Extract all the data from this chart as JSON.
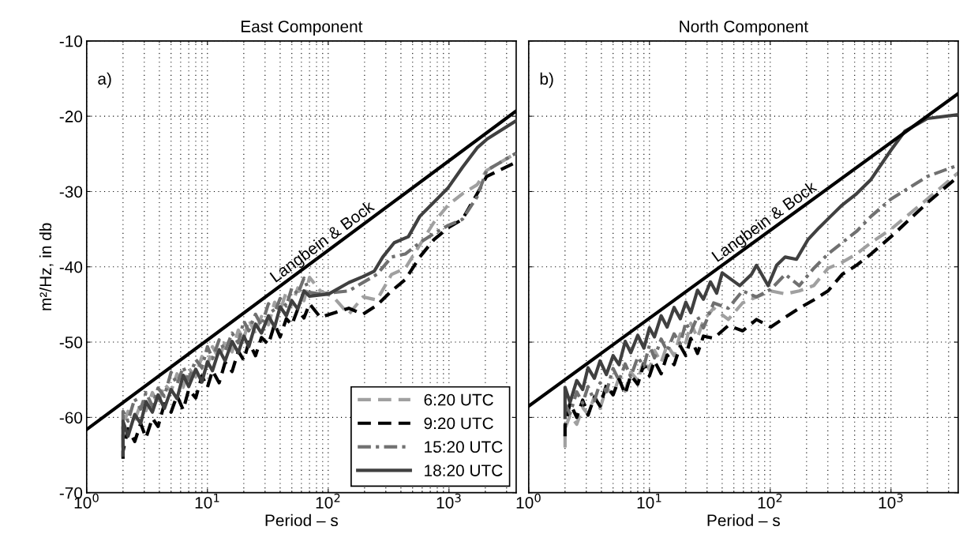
{
  "chart_data": [
    {
      "type": "line",
      "title": "East Component",
      "xlabel": "Period – s",
      "ylabel": "m²/Hz, in db",
      "log": "x",
      "grid": true,
      "legend": "bottom right",
      "marker": "none",
      "xlim": [
        1,
        3600
      ],
      "xticks": [
        {
          "value": 1,
          "label": "10$^{0}$"
        },
        {
          "value": 10,
          "label": "10$^{1}$"
        },
        {
          "value": 100,
          "label": "10$^{2}$"
        },
        {
          "value": 1000,
          "label": "10$^{3}$"
        }
      ],
      "ylim": [
        -70,
        -10
      ],
      "yticks": [
        -70,
        -60,
        -50,
        -40,
        -30,
        -20,
        -10
      ],
      "annotations": [
        "a)"
      ],
      "series": [
        {
          "name": "6:20 UTC",
          "color": "#a0a0a0",
          "line_style": "dashed",
          "x": [
            2,
            2,
            2.2,
            2.5,
            2.8,
            3.1,
            3.5,
            3.9,
            4.4,
            5,
            5.6,
            6.3,
            7,
            8,
            9,
            10,
            11,
            12.5,
            14,
            16,
            18,
            20,
            22,
            25,
            28,
            32,
            36,
            40,
            45,
            50,
            56,
            63,
            70,
            86,
            110,
            148,
            194,
            253,
            335,
            434,
            573,
            750,
            984,
            1291,
            1710,
            2050,
            3600
          ],
          "values": [
            -63,
            -61.0,
            -59.2,
            -60.4,
            -58.2,
            -59.1,
            -56.7,
            -58.3,
            -55.6,
            -56.5,
            -54.2,
            -56.0,
            -53.5,
            -54.6,
            -51.9,
            -53.2,
            -50.6,
            -52.2,
            -49.9,
            -51.3,
            -48.4,
            -49.6,
            -47.0,
            -48.9,
            -46.6,
            -47.7,
            -44.7,
            -45.9,
            -43.3,
            -45.1,
            -42.8,
            -44.5,
            -41.4,
            -43.2,
            -44.0,
            -46.3,
            -44.0,
            -44.4,
            -41.0,
            -40.2,
            -37.1,
            -34.1,
            -31.8,
            -30.3,
            -29.1,
            -27.2,
            -24.9
          ]
        },
        {
          "name": "9:20 UTC",
          "color": "#000000",
          "line_style": "dashed",
          "x": [
            2,
            2,
            2.2,
            2.5,
            2.8,
            3.1,
            3.5,
            3.9,
            4.4,
            5,
            5.6,
            6.3,
            7,
            8,
            9,
            10,
            11,
            12.5,
            14,
            16,
            18,
            20,
            22,
            25,
            28,
            32,
            36,
            40,
            45,
            50,
            56,
            63,
            70,
            86,
            148,
            194,
            253,
            335,
            434,
            573,
            750,
            984,
            1291,
            1710,
            2050,
            3600
          ],
          "values": [
            -65.5,
            -64.5,
            -61.5,
            -63.2,
            -60.8,
            -62.7,
            -60.1,
            -61.2,
            -58.2,
            -59.3,
            -57.1,
            -59.0,
            -56.3,
            -57.4,
            -54.5,
            -56.0,
            -53.8,
            -55.4,
            -52.7,
            -53.9,
            -51.2,
            -52.4,
            -50.0,
            -51.8,
            -49.4,
            -50.3,
            -47.6,
            -49.3,
            -46.9,
            -47.7,
            -45.6,
            -46.8,
            -44.9,
            -46.7,
            -45.5,
            -46.3,
            -45.1,
            -43.2,
            -41.7,
            -38.7,
            -36.4,
            -34.8,
            -33.7,
            -30.3,
            -28.0,
            -26.1
          ]
        },
        {
          "name": "15:20 UTC",
          "color": "#707070",
          "line_style": "dashdot",
          "x": [
            2,
            2,
            2.2,
            2.5,
            2.8,
            3.1,
            3.5,
            3.9,
            4.4,
            5,
            5.6,
            6.3,
            7,
            8,
            9,
            10,
            11,
            12.5,
            14,
            16,
            18,
            20,
            22,
            25,
            28,
            32,
            36,
            40,
            45,
            50,
            56,
            63,
            70,
            86,
            148,
            253,
            335,
            434,
            573,
            750,
            984,
            1291,
            1710,
            2050,
            3600
          ],
          "values": [
            -64,
            -59.2,
            -60.5,
            -57.5,
            -58.9,
            -56.7,
            -58.5,
            -56.1,
            -57.2,
            -54.0,
            -55.6,
            -53.3,
            -55.0,
            -52.3,
            -53.4,
            -50.6,
            -52.2,
            -49.7,
            -51.2,
            -48.8,
            -50.1,
            -47.2,
            -48.5,
            -46.3,
            -47.8,
            -44.9,
            -46.1,
            -44.2,
            -45.2,
            -42.8,
            -43.6,
            -41.5,
            -43.4,
            -43.6,
            -43.2,
            -41.0,
            -38.7,
            -38.3,
            -36.8,
            -35.6,
            -34.5,
            -33.7,
            -30.7,
            -27.2,
            -24.9
          ]
        },
        {
          "name": "18:20 UTC",
          "color": "#404040",
          "line_style": "solid",
          "x": [
            2,
            2,
            2.2,
            2.5,
            2.8,
            3.1,
            3.5,
            3.9,
            4.4,
            5,
            5.6,
            6.3,
            7,
            8,
            9,
            10,
            11,
            12.5,
            14,
            16,
            18,
            20,
            22,
            25,
            28,
            32,
            36,
            40,
            45,
            50,
            56,
            63,
            70,
            101,
            148,
            194,
            240,
            283,
            352,
            461,
            573,
            711,
            984,
            1291,
            1710,
            2080,
            3600
          ],
          "values": [
            -65,
            -60.5,
            -62.5,
            -59.6,
            -60.8,
            -57.9,
            -59.3,
            -57.0,
            -58.8,
            -56.3,
            -57.5,
            -54.4,
            -55.9,
            -53.6,
            -55.3,
            -52.6,
            -53.8,
            -51.0,
            -52.5,
            -49.9,
            -51.4,
            -49.2,
            -50.6,
            -47.6,
            -48.8,
            -46.5,
            -48.0,
            -45.3,
            -46.5,
            -44.5,
            -45.6,
            -43.2,
            -43.9,
            -43.6,
            -42.1,
            -41.3,
            -40.6,
            -38.7,
            -36.8,
            -36.0,
            -33.3,
            -31.8,
            -29.5,
            -26.8,
            -24.2,
            -23.0,
            -20.6
          ]
        },
        {
          "name": "Langbein & Bock",
          "color": "#000000",
          "line_style": "solid",
          "x": [
            1,
            3600
          ],
          "values": [
            -61.6,
            -19.3
          ]
        }
      ]
    },
    {
      "type": "line",
      "title": "North Component",
      "xlabel": "Period – s",
      "log": "x",
      "grid": true,
      "marker": "none",
      "tick_labels": "x",
      "xlim": [
        1,
        3600
      ],
      "xticks": [
        {
          "value": 1,
          "label": "10$^{0}$"
        },
        {
          "value": 10,
          "label": "10$^{1}$"
        },
        {
          "value": 100,
          "label": "10$^{2}$"
        },
        {
          "value": 1000,
          "label": "10$^{3}$"
        }
      ],
      "ylim": [
        -70,
        -10
      ],
      "yticks": [
        -70,
        -60,
        -50,
        -40,
        -30,
        -20,
        -10
      ],
      "annotations": [
        "b)"
      ],
      "series": [
        {
          "color": "#a0a0a0",
          "line_style": "dashed",
          "x": [
            2,
            2,
            2.2,
            2.5,
            2.8,
            3.1,
            3.5,
            3.9,
            4.4,
            5,
            5.6,
            6.3,
            7,
            8,
            9,
            10,
            11,
            12.5,
            14,
            16,
            18,
            20,
            22,
            25,
            28,
            34,
            45,
            59,
            77,
            101,
            133,
            174,
            229,
            301,
            394,
            518,
            683,
            1000,
            2000,
            3600
          ],
          "values": [
            -64,
            -61.5,
            -59.7,
            -60.9,
            -58.7,
            -59.6,
            -57.2,
            -58.8,
            -56.1,
            -57.0,
            -54.7,
            -56.5,
            -54.0,
            -55.1,
            -52.4,
            -53.7,
            -51.1,
            -52.7,
            -50.4,
            -51.8,
            -48.9,
            -50.1,
            -47.5,
            -49.4,
            -47.1,
            -45.5,
            -47.0,
            -44.8,
            -44.0,
            -43.2,
            -43.6,
            -43.2,
            -42.5,
            -40.2,
            -39.4,
            -38.3,
            -36.8,
            -35.0,
            -31.0,
            -27.5
          ]
        },
        {
          "color": "#000000",
          "line_style": "dashed",
          "x": [
            2,
            2,
            2.2,
            2.5,
            2.8,
            3.1,
            3.5,
            3.9,
            4.4,
            5,
            5.6,
            6.3,
            7,
            8,
            9,
            10,
            11,
            12.5,
            14,
            16,
            18,
            20,
            22,
            25,
            28,
            34,
            45,
            59,
            77,
            101,
            133,
            174,
            229,
            301,
            394,
            518,
            683,
            1000,
            2000,
            3600
          ],
          "values": [
            -62.5,
            -61.0,
            -58.1,
            -60.0,
            -57.7,
            -59.7,
            -57.3,
            -58.5,
            -55.7,
            -57.0,
            -54.9,
            -56.9,
            -54.4,
            -55.6,
            -52.9,
            -54.5,
            -52.5,
            -54.2,
            -51.7,
            -53.0,
            -50.5,
            -51.8,
            -49.5,
            -51.5,
            -49.2,
            -49.5,
            -47.8,
            -48.5,
            -47.0,
            -48.0,
            -46.7,
            -45.5,
            -44.4,
            -43.2,
            -41.0,
            -39.8,
            -38.3,
            -36.0,
            -31.5,
            -28.0
          ]
        },
        {
          "color": "#707070",
          "line_style": "dashdot",
          "x": [
            2,
            2.2,
            2.5,
            2.8,
            3.1,
            3.5,
            3.9,
            4.4,
            5,
            5.6,
            6.3,
            7,
            8,
            9,
            10,
            11,
            12.5,
            14,
            16,
            18,
            20,
            22,
            25,
            28,
            34,
            45,
            59,
            77,
            101,
            133,
            174,
            229,
            301,
            394,
            518,
            683,
            1000,
            2000,
            3600
          ],
          "values": [
            -58.2,
            -59.5,
            -56.6,
            -58.1,
            -55.9,
            -57.8,
            -55.4,
            -56.6,
            -53.5,
            -55.1,
            -52.9,
            -54.6,
            -52.0,
            -53.2,
            -50.4,
            -52.1,
            -49.6,
            -51.2,
            -48.9,
            -50.2,
            -47.4,
            -48.7,
            -46.6,
            -48.1,
            -44.8,
            -45.5,
            -43.2,
            -44.0,
            -43.0,
            -41.0,
            -42.5,
            -40.2,
            -38.3,
            -36.8,
            -35.3,
            -33.3,
            -31.0,
            -28.0,
            -26.5
          ]
        },
        {
          "color": "#404040",
          "line_style": "solid",
          "x": [
            2,
            2,
            2.2,
            2.5,
            2.8,
            3.1,
            3.5,
            3.9,
            4.4,
            5,
            5.6,
            6.3,
            7,
            8,
            9,
            10,
            11,
            12.5,
            14,
            16,
            18,
            20,
            22,
            25,
            28,
            32,
            36,
            40,
            56,
            70,
            77,
            96,
            113,
            133,
            165,
            205,
            254,
            316,
            394,
            518,
            683,
            1000,
            1300,
            2000,
            3600
          ],
          "values": [
            -60,
            -56.0,
            -58.0,
            -55.1,
            -56.3,
            -53.4,
            -54.8,
            -52.5,
            -54.3,
            -51.8,
            -53.0,
            -49.9,
            -51.4,
            -49.1,
            -50.8,
            -48.1,
            -49.3,
            -46.5,
            -48.0,
            -45.4,
            -46.9,
            -44.7,
            -46.1,
            -43.1,
            -44.3,
            -42.0,
            -43.5,
            -40.8,
            -42.5,
            -41.0,
            -39.8,
            -42.5,
            -39.8,
            -38.7,
            -39.0,
            -36.4,
            -34.8,
            -33.3,
            -31.8,
            -30.3,
            -28.4,
            -24.5,
            -22.0,
            -20.3,
            -19.8
          ]
        },
        {
          "name": "Langbein & Bock",
          "color": "#000000",
          "line_style": "solid",
          "x": [
            1,
            3600
          ],
          "values": [
            -58.5,
            -17.0
          ]
        }
      ]
    }
  ]
}
